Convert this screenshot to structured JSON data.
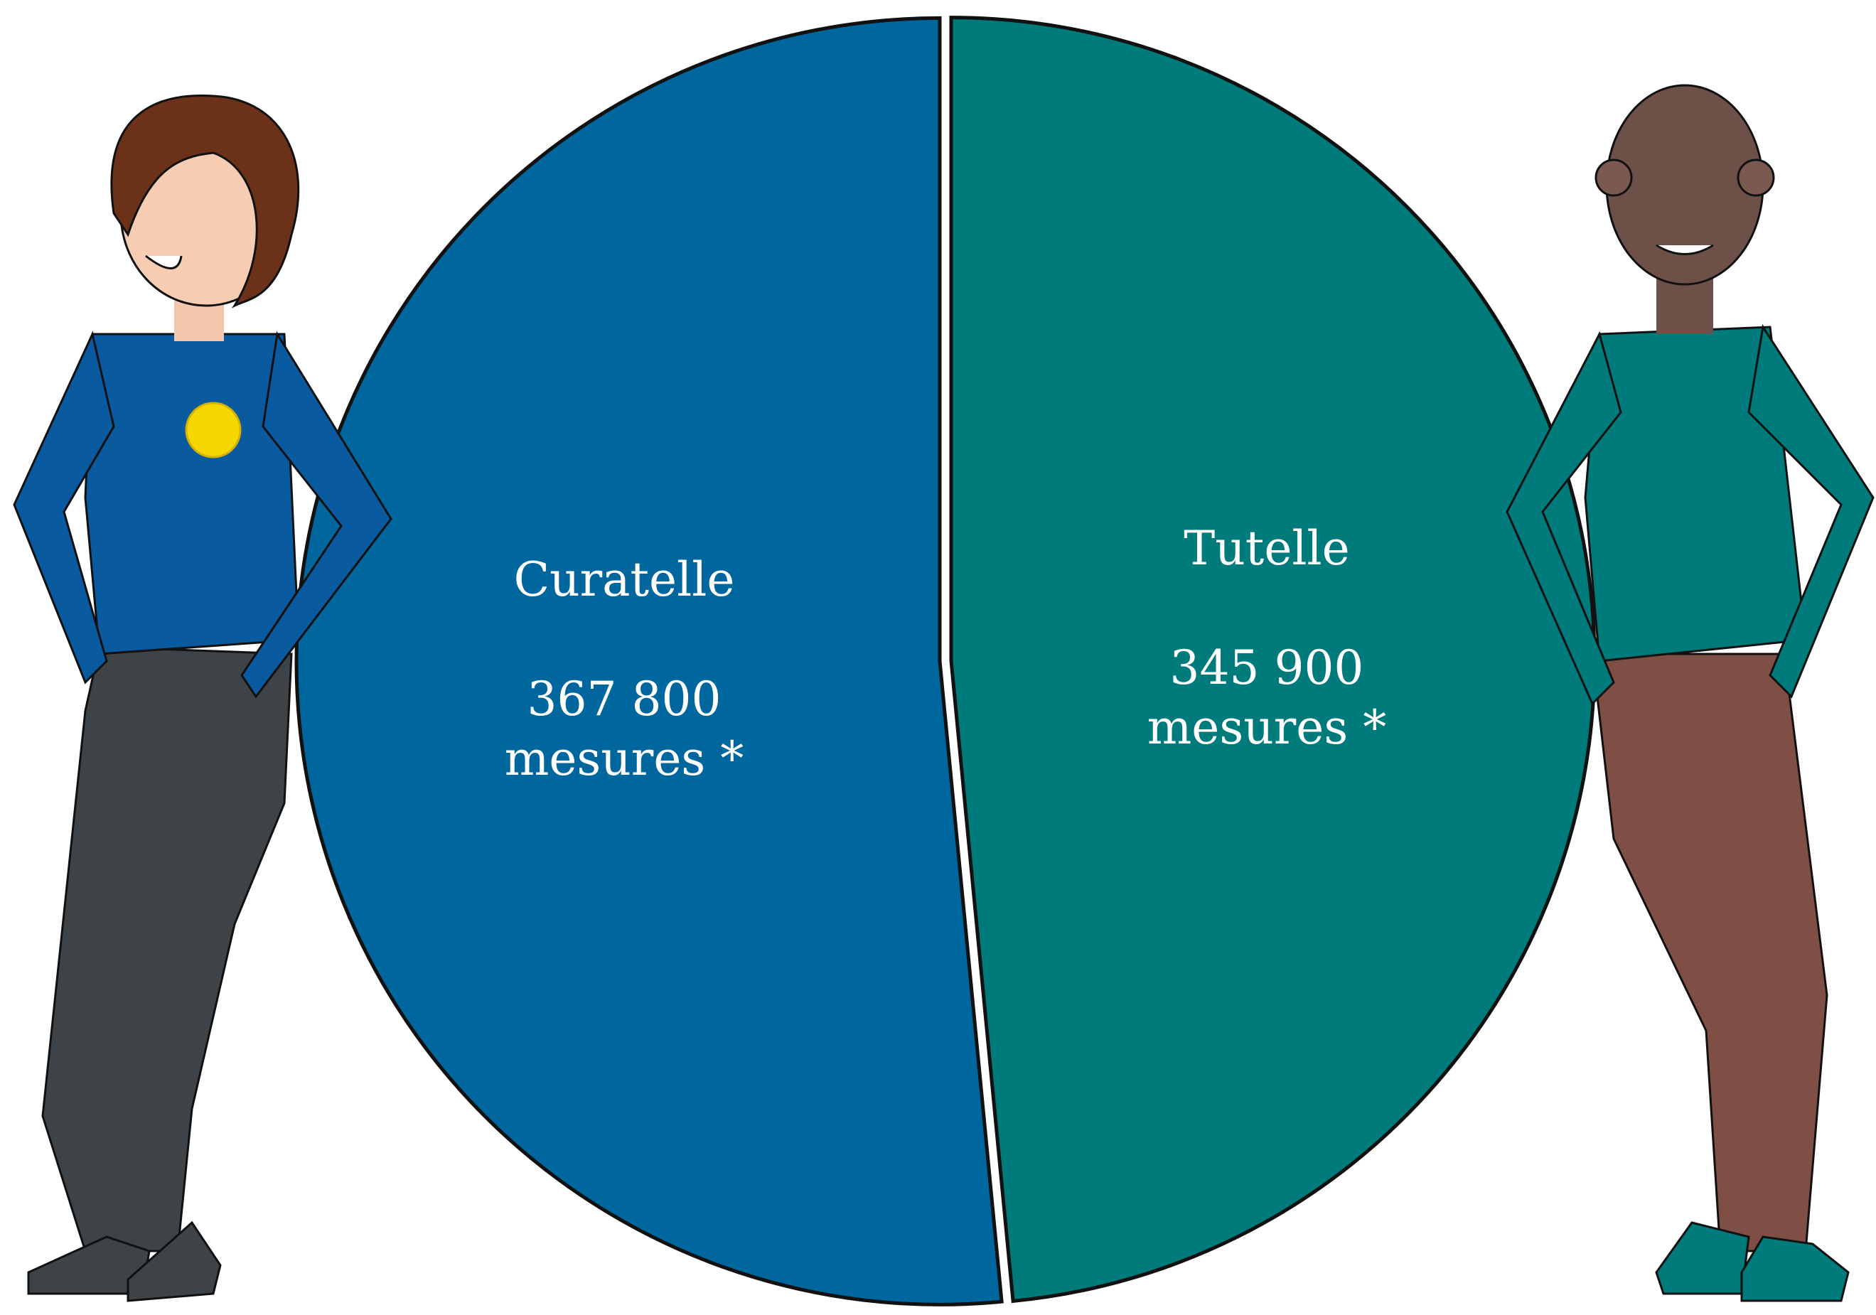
{
  "chart_data": {
    "type": "pie",
    "categories": [
      "Curatelle",
      "Tutelle"
    ],
    "values": [
      367800,
      345900
    ],
    "value_labels": [
      "367 800 mesures *",
      "345 900 mesures *"
    ],
    "colors": [
      "#00679e",
      "#007b7b"
    ]
  }
}
